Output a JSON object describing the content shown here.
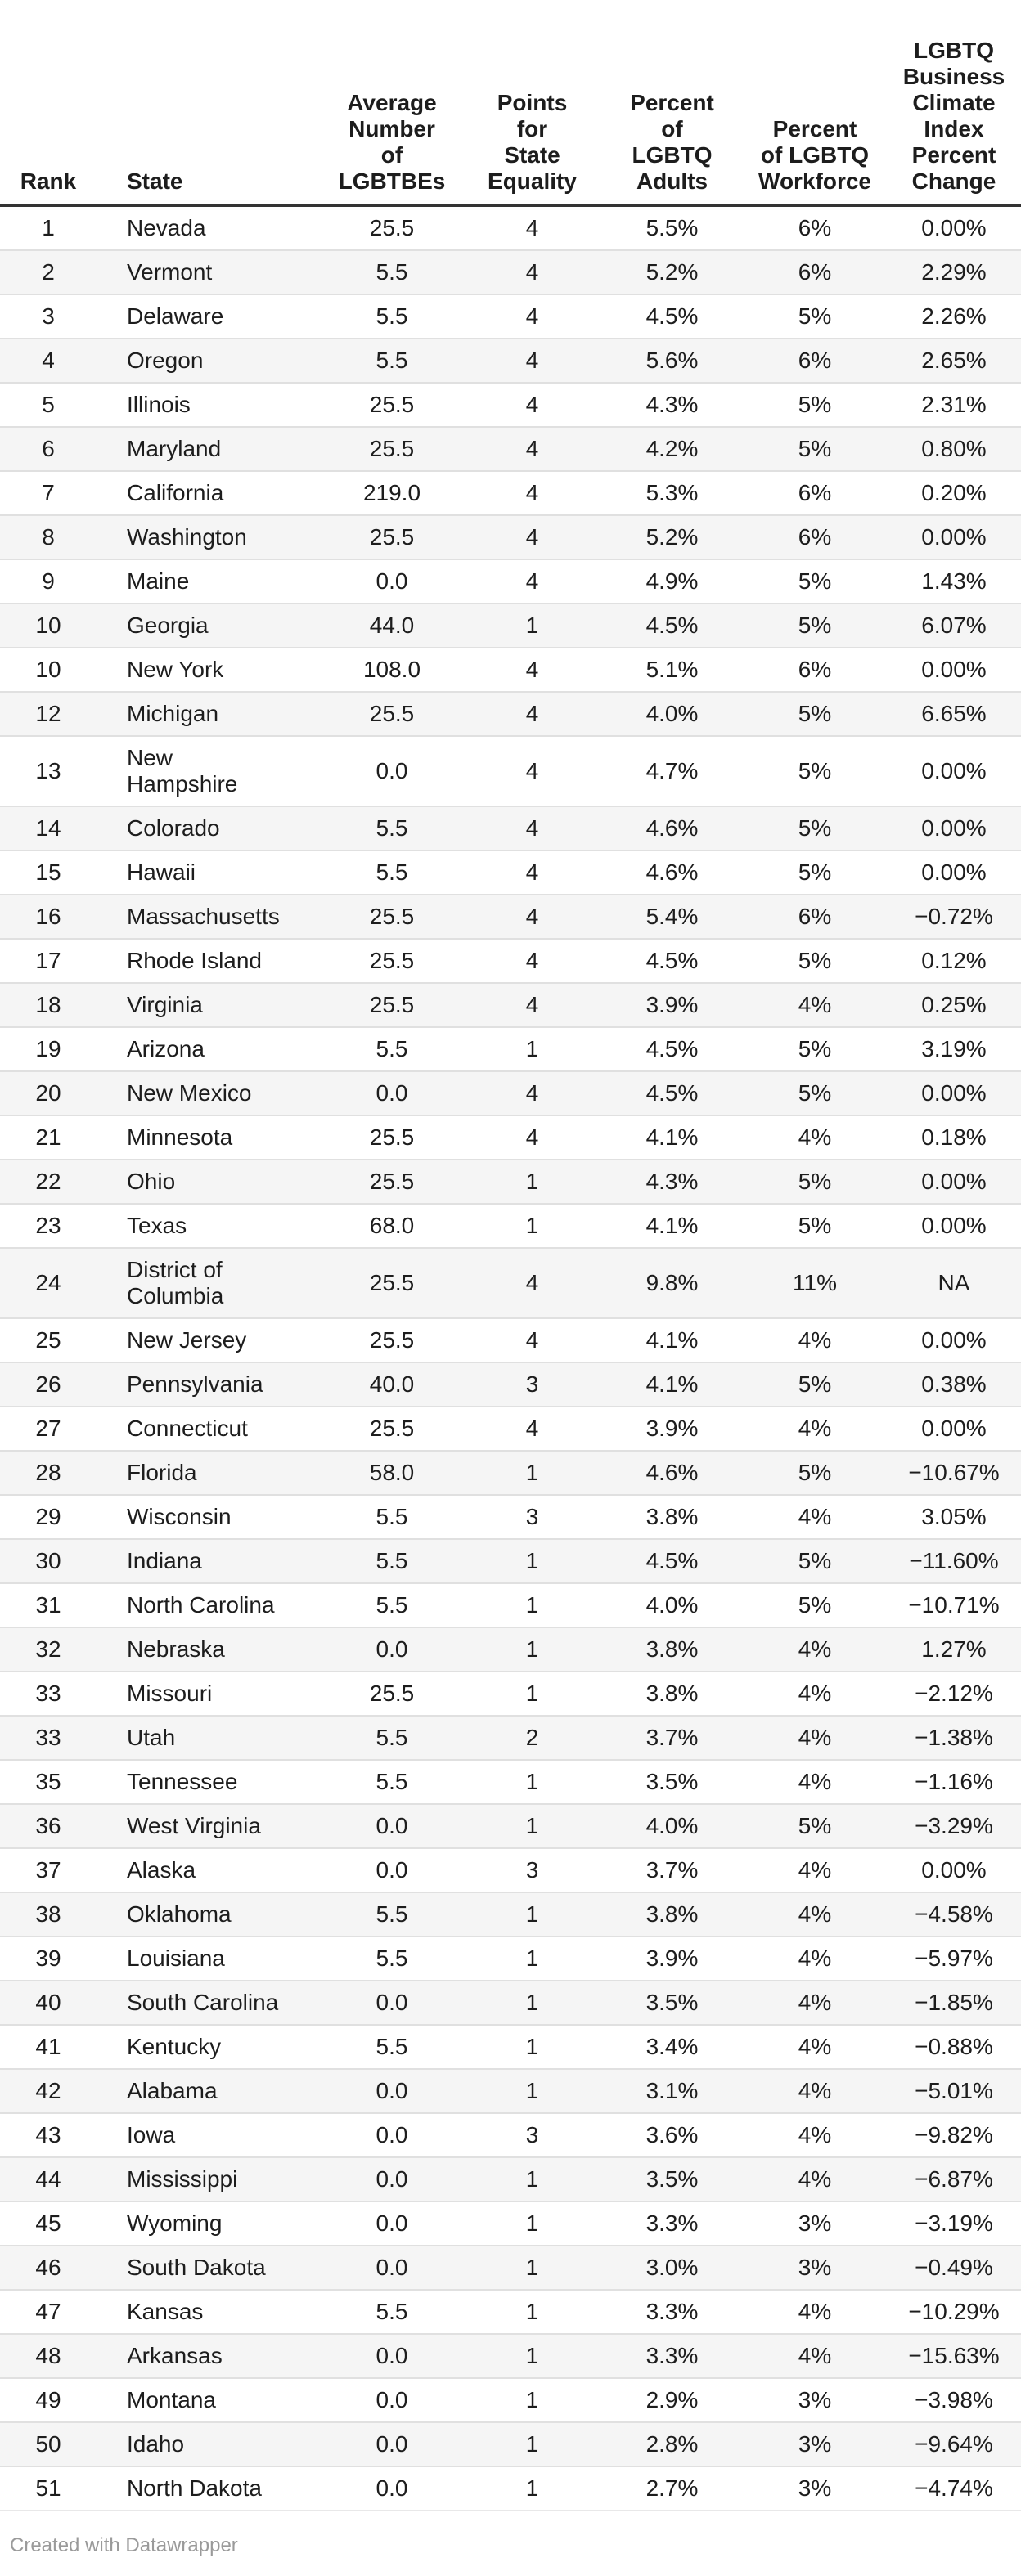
{
  "table": {
    "columns": [
      {
        "id": "rank",
        "label": "Rank"
      },
      {
        "id": "state",
        "label": "State"
      },
      {
        "id": "avg_lgbtbes",
        "label": "Average\nNumber\nof\nLGBTBEs"
      },
      {
        "id": "points_state_equality",
        "label": "Points\nfor\nState\nEquality"
      },
      {
        "id": "pct_lgbtq_adults",
        "label": "Percent\nof\nLGBTQ\nAdults"
      },
      {
        "id": "pct_lgbtq_workforce",
        "label": "Percent\nof LGBTQ\nWorkforce"
      },
      {
        "id": "climate_index_pct_change",
        "label": "LGBTQ\nBusiness\nClimate\nIndex\nPercent\nChange"
      }
    ],
    "rows": [
      [
        "1",
        "Nevada",
        "25.5",
        "4",
        "5.5%",
        "6%",
        "0.00%"
      ],
      [
        "2",
        "Vermont",
        "5.5",
        "4",
        "5.2%",
        "6%",
        "2.29%"
      ],
      [
        "3",
        "Delaware",
        "5.5",
        "4",
        "4.5%",
        "5%",
        "2.26%"
      ],
      [
        "4",
        "Oregon",
        "5.5",
        "4",
        "5.6%",
        "6%",
        "2.65%"
      ],
      [
        "5",
        "Illinois",
        "25.5",
        "4",
        "4.3%",
        "5%",
        "2.31%"
      ],
      [
        "6",
        "Maryland",
        "25.5",
        "4",
        "4.2%",
        "5%",
        "0.80%"
      ],
      [
        "7",
        "California",
        "219.0",
        "4",
        "5.3%",
        "6%",
        "0.20%"
      ],
      [
        "8",
        "Washington",
        "25.5",
        "4",
        "5.2%",
        "6%",
        "0.00%"
      ],
      [
        "9",
        "Maine",
        "0.0",
        "4",
        "4.9%",
        "5%",
        "1.43%"
      ],
      [
        "10",
        "Georgia",
        "44.0",
        "1",
        "4.5%",
        "5%",
        "6.07%"
      ],
      [
        "10",
        "New York",
        "108.0",
        "4",
        "5.1%",
        "6%",
        "0.00%"
      ],
      [
        "12",
        "Michigan",
        "25.5",
        "4",
        "4.0%",
        "5%",
        "6.65%"
      ],
      [
        "13",
        "New\nHampshire",
        "0.0",
        "4",
        "4.7%",
        "5%",
        "0.00%"
      ],
      [
        "14",
        "Colorado",
        "5.5",
        "4",
        "4.6%",
        "5%",
        "0.00%"
      ],
      [
        "15",
        "Hawaii",
        "5.5",
        "4",
        "4.6%",
        "5%",
        "0.00%"
      ],
      [
        "16",
        "Massachusetts",
        "25.5",
        "4",
        "5.4%",
        "6%",
        "−0.72%"
      ],
      [
        "17",
        "Rhode Island",
        "25.5",
        "4",
        "4.5%",
        "5%",
        "0.12%"
      ],
      [
        "18",
        "Virginia",
        "25.5",
        "4",
        "3.9%",
        "4%",
        "0.25%"
      ],
      [
        "19",
        "Arizona",
        "5.5",
        "1",
        "4.5%",
        "5%",
        "3.19%"
      ],
      [
        "20",
        "New Mexico",
        "0.0",
        "4",
        "4.5%",
        "5%",
        "0.00%"
      ],
      [
        "21",
        "Minnesota",
        "25.5",
        "4",
        "4.1%",
        "4%",
        "0.18%"
      ],
      [
        "22",
        "Ohio",
        "25.5",
        "1",
        "4.3%",
        "5%",
        "0.00%"
      ],
      [
        "23",
        "Texas",
        "68.0",
        "1",
        "4.1%",
        "5%",
        "0.00%"
      ],
      [
        "24",
        "District of\nColumbia",
        "25.5",
        "4",
        "9.8%",
        "11%",
        "NA"
      ],
      [
        "25",
        "New Jersey",
        "25.5",
        "4",
        "4.1%",
        "4%",
        "0.00%"
      ],
      [
        "26",
        "Pennsylvania",
        "40.0",
        "3",
        "4.1%",
        "5%",
        "0.38%"
      ],
      [
        "27",
        "Connecticut",
        "25.5",
        "4",
        "3.9%",
        "4%",
        "0.00%"
      ],
      [
        "28",
        "Florida",
        "58.0",
        "1",
        "4.6%",
        "5%",
        "−10.67%"
      ],
      [
        "29",
        "Wisconsin",
        "5.5",
        "3",
        "3.8%",
        "4%",
        "3.05%"
      ],
      [
        "30",
        "Indiana",
        "5.5",
        "1",
        "4.5%",
        "5%",
        "−11.60%"
      ],
      [
        "31",
        "North Carolina",
        "5.5",
        "1",
        "4.0%",
        "5%",
        "−10.71%"
      ],
      [
        "32",
        "Nebraska",
        "0.0",
        "1",
        "3.8%",
        "4%",
        "1.27%"
      ],
      [
        "33",
        "Missouri",
        "25.5",
        "1",
        "3.8%",
        "4%",
        "−2.12%"
      ],
      [
        "33",
        "Utah",
        "5.5",
        "2",
        "3.7%",
        "4%",
        "−1.38%"
      ],
      [
        "35",
        "Tennessee",
        "5.5",
        "1",
        "3.5%",
        "4%",
        "−1.16%"
      ],
      [
        "36",
        "West Virginia",
        "0.0",
        "1",
        "4.0%",
        "5%",
        "−3.29%"
      ],
      [
        "37",
        "Alaska",
        "0.0",
        "3",
        "3.7%",
        "4%",
        "0.00%"
      ],
      [
        "38",
        "Oklahoma",
        "5.5",
        "1",
        "3.8%",
        "4%",
        "−4.58%"
      ],
      [
        "39",
        "Louisiana",
        "5.5",
        "1",
        "3.9%",
        "4%",
        "−5.97%"
      ],
      [
        "40",
        "South Carolina",
        "0.0",
        "1",
        "3.5%",
        "4%",
        "−1.85%"
      ],
      [
        "41",
        "Kentucky",
        "5.5",
        "1",
        "3.4%",
        "4%",
        "−0.88%"
      ],
      [
        "42",
        "Alabama",
        "0.0",
        "1",
        "3.1%",
        "4%",
        "−5.01%"
      ],
      [
        "43",
        "Iowa",
        "0.0",
        "3",
        "3.6%",
        "4%",
        "−9.82%"
      ],
      [
        "44",
        "Mississippi",
        "0.0",
        "1",
        "3.5%",
        "4%",
        "−6.87%"
      ],
      [
        "45",
        "Wyoming",
        "0.0",
        "1",
        "3.3%",
        "3%",
        "−3.19%"
      ],
      [
        "46",
        "South Dakota",
        "0.0",
        "1",
        "3.0%",
        "3%",
        "−0.49%"
      ],
      [
        "47",
        "Kansas",
        "5.5",
        "1",
        "3.3%",
        "4%",
        "−10.29%"
      ],
      [
        "48",
        "Arkansas",
        "0.0",
        "1",
        "3.3%",
        "4%",
        "−15.63%"
      ],
      [
        "49",
        "Montana",
        "0.0",
        "1",
        "2.9%",
        "3%",
        "−3.98%"
      ],
      [
        "50",
        "Idaho",
        "0.0",
        "1",
        "2.8%",
        "3%",
        "−9.64%"
      ],
      [
        "51",
        "North Dakota",
        "0.0",
        "1",
        "2.7%",
        "3%",
        "−4.74%"
      ]
    ]
  },
  "footer": {
    "credit": "Created with Datawrapper"
  },
  "colors": {
    "text": "#1d1d1d",
    "header_rule": "#333333",
    "row_divider": "#e0e0e0",
    "row_stripe": "#f5f5f5",
    "credit_text": "#9a9a9a",
    "background": "#ffffff"
  },
  "chart_data": {
    "type": "table",
    "columns": [
      "Rank",
      "State",
      "Average Number of LGBTBEs",
      "Points for State Equality",
      "Percent of LGBTQ Adults",
      "Percent of LGBTQ Workforce",
      "LGBTQ Business Climate Index Percent Change"
    ],
    "rows": [
      [
        1,
        "Nevada",
        25.5,
        4,
        "5.5%",
        "6%",
        "0.00%"
      ],
      [
        2,
        "Vermont",
        5.5,
        4,
        "5.2%",
        "6%",
        "2.29%"
      ],
      [
        3,
        "Delaware",
        5.5,
        4,
        "4.5%",
        "5%",
        "2.26%"
      ],
      [
        4,
        "Oregon",
        5.5,
        4,
        "5.6%",
        "6%",
        "2.65%"
      ],
      [
        5,
        "Illinois",
        25.5,
        4,
        "4.3%",
        "5%",
        "2.31%"
      ],
      [
        6,
        "Maryland",
        25.5,
        4,
        "4.2%",
        "5%",
        "0.80%"
      ],
      [
        7,
        "California",
        219.0,
        4,
        "5.3%",
        "6%",
        "0.20%"
      ],
      [
        8,
        "Washington",
        25.5,
        4,
        "5.2%",
        "6%",
        "0.00%"
      ],
      [
        9,
        "Maine",
        0.0,
        4,
        "4.9%",
        "5%",
        "1.43%"
      ],
      [
        10,
        "Georgia",
        44.0,
        1,
        "4.5%",
        "5%",
        "6.07%"
      ],
      [
        10,
        "New York",
        108.0,
        4,
        "5.1%",
        "6%",
        "0.00%"
      ],
      [
        12,
        "Michigan",
        25.5,
        4,
        "4.0%",
        "5%",
        "6.65%"
      ],
      [
        13,
        "New Hampshire",
        0.0,
        4,
        "4.7%",
        "5%",
        "0.00%"
      ],
      [
        14,
        "Colorado",
        5.5,
        4,
        "4.6%",
        "5%",
        "0.00%"
      ],
      [
        15,
        "Hawaii",
        5.5,
        4,
        "4.6%",
        "5%",
        "0.00%"
      ],
      [
        16,
        "Massachusetts",
        25.5,
        4,
        "5.4%",
        "6%",
        "-0.72%"
      ],
      [
        17,
        "Rhode Island",
        25.5,
        4,
        "4.5%",
        "5%",
        "0.12%"
      ],
      [
        18,
        "Virginia",
        25.5,
        4,
        "3.9%",
        "4%",
        "0.25%"
      ],
      [
        19,
        "Arizona",
        5.5,
        1,
        "4.5%",
        "5%",
        "3.19%"
      ],
      [
        20,
        "New Mexico",
        0.0,
        4,
        "4.5%",
        "5%",
        "0.00%"
      ],
      [
        21,
        "Minnesota",
        25.5,
        4,
        "4.1%",
        "4%",
        "0.18%"
      ],
      [
        22,
        "Ohio",
        25.5,
        1,
        "4.3%",
        "5%",
        "0.00%"
      ],
      [
        23,
        "Texas",
        68.0,
        1,
        "4.1%",
        "5%",
        "0.00%"
      ],
      [
        24,
        "District of Columbia",
        25.5,
        4,
        "9.8%",
        "11%",
        "NA"
      ],
      [
        25,
        "New Jersey",
        25.5,
        4,
        "4.1%",
        "4%",
        "0.00%"
      ],
      [
        26,
        "Pennsylvania",
        40.0,
        3,
        "4.1%",
        "5%",
        "0.38%"
      ],
      [
        27,
        "Connecticut",
        25.5,
        4,
        "3.9%",
        "4%",
        "0.00%"
      ],
      [
        28,
        "Florida",
        58.0,
        1,
        "4.6%",
        "5%",
        "-10.67%"
      ],
      [
        29,
        "Wisconsin",
        5.5,
        3,
        "3.8%",
        "4%",
        "3.05%"
      ],
      [
        30,
        "Indiana",
        5.5,
        1,
        "4.5%",
        "5%",
        "-11.60%"
      ],
      [
        31,
        "North Carolina",
        5.5,
        1,
        "4.0%",
        "5%",
        "-10.71%"
      ],
      [
        32,
        "Nebraska",
        0.0,
        1,
        "3.8%",
        "4%",
        "1.27%"
      ],
      [
        33,
        "Missouri",
        25.5,
        1,
        "3.8%",
        "4%",
        "-2.12%"
      ],
      [
        33,
        "Utah",
        5.5,
        2,
        "3.7%",
        "4%",
        "-1.38%"
      ],
      [
        35,
        "Tennessee",
        5.5,
        1,
        "3.5%",
        "4%",
        "-1.16%"
      ],
      [
        36,
        "West Virginia",
        0.0,
        1,
        "4.0%",
        "5%",
        "-3.29%"
      ],
      [
        37,
        "Alaska",
        0.0,
        3,
        "3.7%",
        "4%",
        "0.00%"
      ],
      [
        38,
        "Oklahoma",
        5.5,
        1,
        "3.8%",
        "4%",
        "-4.58%"
      ],
      [
        39,
        "Louisiana",
        5.5,
        1,
        "3.9%",
        "4%",
        "-5.97%"
      ],
      [
        40,
        "South Carolina",
        0.0,
        1,
        "3.5%",
        "4%",
        "-1.85%"
      ],
      [
        41,
        "Kentucky",
        5.5,
        1,
        "3.4%",
        "4%",
        "-0.88%"
      ],
      [
        42,
        "Alabama",
        0.0,
        1,
        "3.1%",
        "4%",
        "-5.01%"
      ],
      [
        43,
        "Iowa",
        0.0,
        3,
        "3.6%",
        "4%",
        "-9.82%"
      ],
      [
        44,
        "Mississippi",
        0.0,
        1,
        "3.5%",
        "4%",
        "-6.87%"
      ],
      [
        45,
        "Wyoming",
        0.0,
        1,
        "3.3%",
        "3%",
        "-3.19%"
      ],
      [
        46,
        "South Dakota",
        0.0,
        1,
        "3.0%",
        "3%",
        "-0.49%"
      ],
      [
        47,
        "Kansas",
        5.5,
        1,
        "3.3%",
        "4%",
        "-10.29%"
      ],
      [
        48,
        "Arkansas",
        0.0,
        1,
        "3.3%",
        "4%",
        "-15.63%"
      ],
      [
        49,
        "Montana",
        0.0,
        1,
        "2.9%",
        "3%",
        "-3.98%"
      ],
      [
        50,
        "Idaho",
        0.0,
        1,
        "2.8%",
        "3%",
        "-9.64%"
      ],
      [
        51,
        "North Dakota",
        0.0,
        1,
        "2.7%",
        "3%",
        "-4.74%"
      ]
    ]
  }
}
